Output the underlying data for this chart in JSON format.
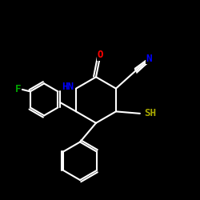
{
  "background_color": "#000000",
  "bond_color": "#ffffff",
  "atom_colors": {
    "O": "#ff0000",
    "N": "#0000ff",
    "F": "#00aa00",
    "S": "#aaaa00",
    "H": "#ffffff",
    "C": "#ffffff"
  },
  "font_size_atoms": 9,
  "font_size_small": 7,
  "figsize": [
    2.5,
    2.5
  ],
  "dpi": 100
}
